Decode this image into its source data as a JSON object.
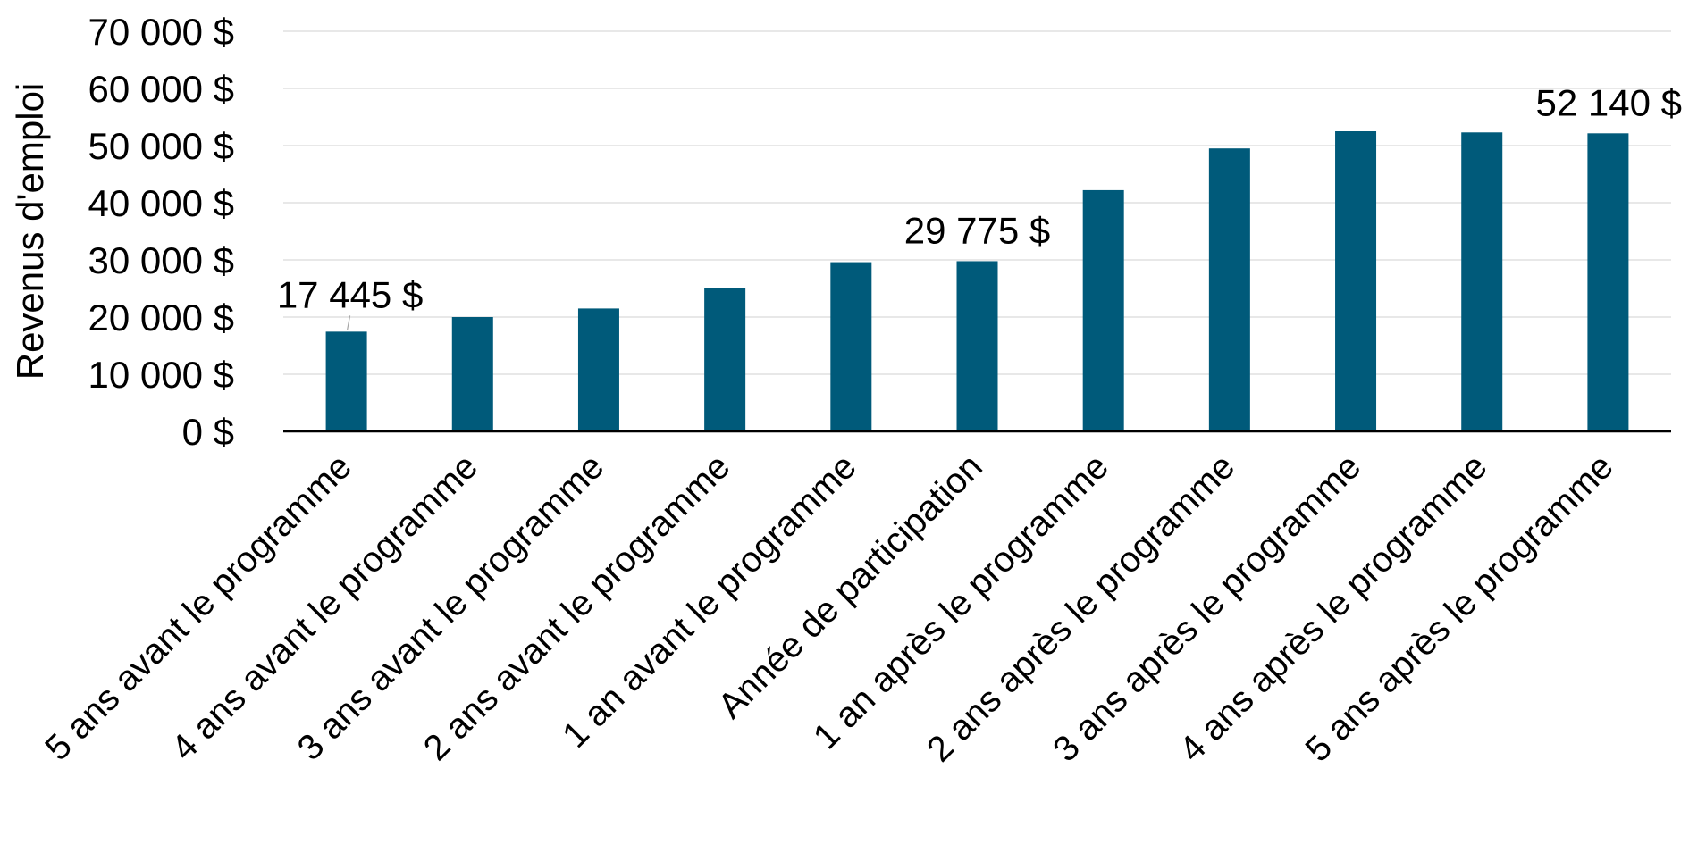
{
  "chart_data": {
    "type": "bar",
    "ylabel": "Revenus d'emploi",
    "xlabel": "",
    "ylim": [
      0,
      70000
    ],
    "y_ticks": [
      0,
      10000,
      20000,
      30000,
      40000,
      50000,
      60000,
      70000
    ],
    "y_tick_labels": [
      "0 $",
      "10 000 $",
      "20 000 $",
      "30 000 $",
      "40 000 $",
      "50 000 $",
      "60 000 $",
      "70 000 $"
    ],
    "grid": true,
    "bar_color": "#005a7a",
    "categories": [
      "5 ans avant le programme",
      "4 ans avant le programme",
      "3 ans avant le programme",
      "2 ans avant le programme",
      "1 an avant le programme",
      "Année de participation",
      "1 an après le programme",
      "2 ans après le programme",
      "3 ans après le programme",
      "4 ans après le programme",
      "5 ans après le programme"
    ],
    "values": [
      17445,
      20000,
      21500,
      25000,
      29600,
      29775,
      42200,
      49500,
      52500,
      52300,
      52140
    ],
    "data_labels": [
      {
        "index": 0,
        "text": "17 445 $"
      },
      {
        "index": 5,
        "text": "29 775 $"
      },
      {
        "index": 10,
        "text": "52 140 $"
      }
    ]
  }
}
